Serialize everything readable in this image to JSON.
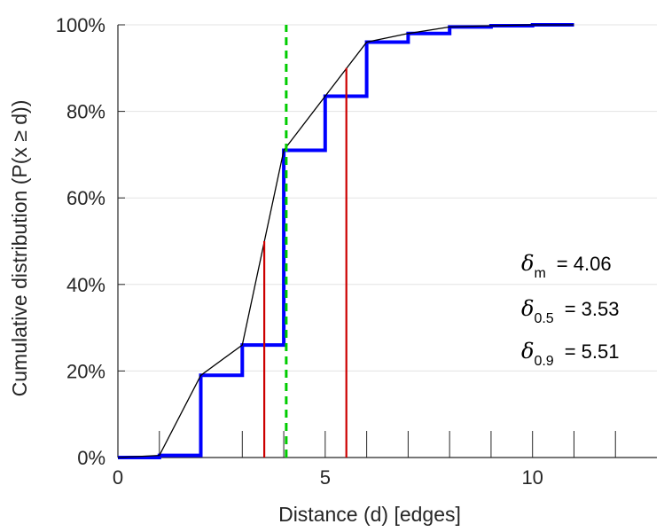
{
  "chart_data": {
    "type": "line",
    "title": "",
    "xlabel": "Distance (d) [edges]",
    "ylabel": "Cumulative distribution (P(x ≥ d))",
    "xlim": [
      0,
      13
    ],
    "ylim": [
      0,
      1
    ],
    "x_ticks": [
      0,
      5,
      10
    ],
    "x_minor_ticks": [
      1,
      2,
      3,
      4,
      5,
      6,
      7,
      8,
      9,
      10,
      11,
      12
    ],
    "x_tick_labels": [
      "0",
      "5",
      "10"
    ],
    "y_ticks": [
      0,
      0.2,
      0.4,
      0.6,
      0.8,
      1.0
    ],
    "y_tick_labels": [
      "0%",
      "20%",
      "40%",
      "60%",
      "80%",
      "100%"
    ],
    "grid": "horizontal",
    "series": [
      {
        "name": "empirical-step",
        "style": "step",
        "color": "#0000ff",
        "x": [
          0,
          1,
          2,
          3,
          4,
          5,
          6,
          7,
          8,
          9,
          10,
          11
        ],
        "y": [
          0.0,
          0.005,
          0.19,
          0.26,
          0.71,
          0.835,
          0.96,
          0.98,
          0.995,
          0.998,
          1.0,
          1.0
        ]
      },
      {
        "name": "interpolated",
        "style": "line",
        "color": "#000000",
        "x": [
          0,
          1,
          2,
          3,
          4,
          5,
          6,
          7,
          8,
          9,
          10,
          11
        ],
        "y": [
          0.0,
          0.005,
          0.19,
          0.26,
          0.71,
          0.835,
          0.96,
          0.98,
          0.995,
          0.998,
          1.0,
          1.0
        ]
      }
    ],
    "reference_lines": [
      {
        "name": "delta-0.5-line",
        "x": 3.53,
        "y_top": 0.5,
        "color": "#cc0000",
        "style": "solid"
      },
      {
        "name": "delta-0.9-line",
        "x": 5.51,
        "y_top": 0.9,
        "color": "#cc0000",
        "style": "solid"
      },
      {
        "name": "delta-m-line",
        "x": 4.06,
        "y_top": 1.0,
        "color": "#00cc00",
        "style": "dashed"
      }
    ],
    "annotations": [
      {
        "symbol": "δ",
        "sub": "m",
        "text": "= 4.06"
      },
      {
        "symbol": "δ",
        "sub": "0.5",
        "text": "= 3.53"
      },
      {
        "symbol": "δ",
        "sub": "0.9",
        "text": "= 5.51"
      }
    ]
  }
}
